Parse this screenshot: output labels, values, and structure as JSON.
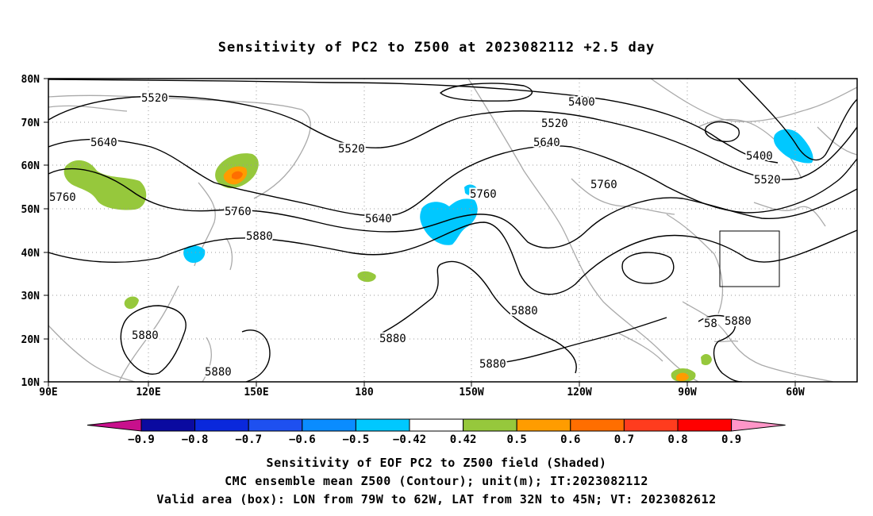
{
  "title": "Sensitivity of PC2 to Z500 at 2023082112 +2.5 day",
  "lat_labels": [
    "80N",
    "70N",
    "60N",
    "50N",
    "40N",
    "30N",
    "20N",
    "10N"
  ],
  "lon_labels": [
    "90E",
    "120E",
    "150E",
    "180",
    "150W",
    "120W",
    "90W",
    "60W"
  ],
  "contours": [
    {
      "value": "5400",
      "labels": [
        "5400",
        "5400"
      ]
    },
    {
      "value": "5520",
      "labels": [
        "5520",
        "5520",
        "5520",
        "5520"
      ]
    },
    {
      "value": "5640",
      "labels": [
        "5640",
        "5640",
        "5640"
      ]
    },
    {
      "value": "5760",
      "labels": [
        "5760",
        "5760",
        "5760",
        "5760"
      ]
    },
    {
      "value": "5880",
      "labels": [
        "5880",
        "5880",
        "5880",
        "5880",
        "5880",
        "5880",
        "58"
      ]
    }
  ],
  "colorbar": {
    "ticks": [
      "-0.9",
      "-0.8",
      "-0.7",
      "-0.6",
      "-0.5",
      "-0.42",
      "0.42",
      "0.5",
      "0.6",
      "0.7",
      "0.8",
      "0.9"
    ],
    "colors": {
      "lt_-0.9": "#c8108c",
      "-0.9_-0.8": "#0a0aa0",
      "-0.8_-0.7": "#0a28dc",
      "-0.7_-0.6": "#1e50f0",
      "-0.6_-0.5": "#0a8cff",
      "-0.5_-0.42": "#00c8ff",
      "-0.42_0.42": "#ffffff",
      "0.42_0.5": "#96c83c",
      "0.5_0.6": "#ff9c00",
      "0.6_0.7": "#ff6e00",
      "0.7_0.8": "#ff3c1e",
      "0.8_0.9": "#ff0000",
      "gt_0.9": "#ff96c8"
    }
  },
  "valid_box": {
    "lon_west": "79W",
    "lon_east": "62W",
    "lat_south": "32N",
    "lat_north": "45N"
  },
  "footer": {
    "line1": "Sensitivity of EOF PC2 to Z500 field (Shaded)",
    "line2": "CMC ensemble mean Z500 (Contour); unit(m); IT:2023082112",
    "line3": "Valid area (box): LON from 79W to 62W, LAT from 32N to 45N; VT: 2023082612"
  },
  "colors": {
    "contour": "#000000",
    "coast": "#aaaaaa",
    "grid": "#999999"
  }
}
